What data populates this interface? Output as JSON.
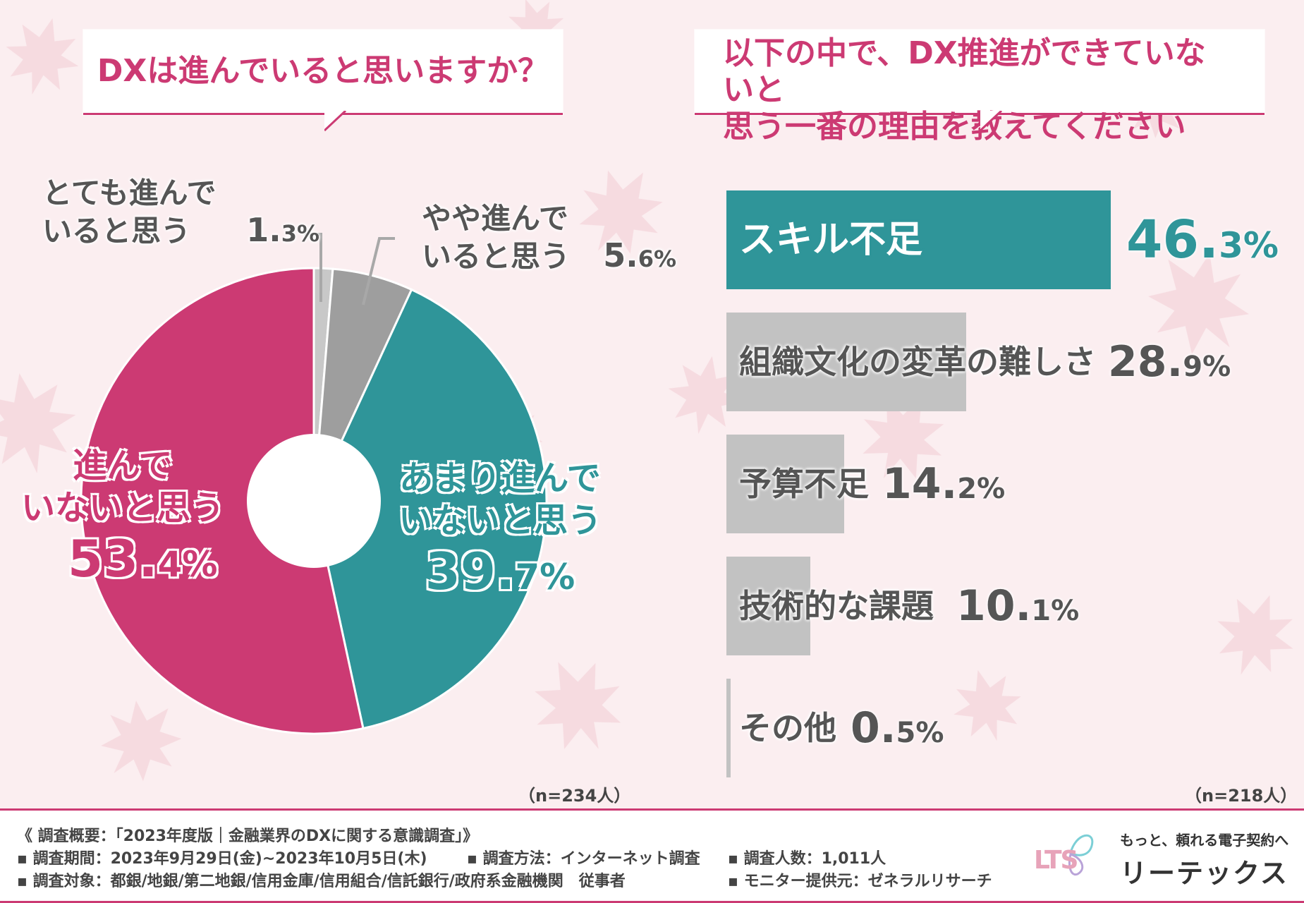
{
  "colors": {
    "accent": "#cc3a73",
    "teal": "#2f9599",
    "gray_bar": "#c2c2c2",
    "gray_dark": "#9e9e9e",
    "gray_light": "#c8c8c8",
    "bg": "#fbeef0"
  },
  "left": {
    "title": "DXは進んでいると思いますか？",
    "n_note": "（n=234人）",
    "labels": {
      "very": {
        "text_l1": "とても進んで",
        "text_l2": "いると思う",
        "pct_int": "1.",
        "pct_dec": "3%"
      },
      "somewhat": {
        "text_l1": "やや進んで",
        "text_l2": "いると思う",
        "pct_int": "5.",
        "pct_dec": "6%"
      },
      "not_much": {
        "text_l1": "あまり進んで",
        "text_l2": "いないと思う",
        "pct_int": "39.",
        "pct_dec": "7%"
      },
      "not": {
        "text_l1": "進んで",
        "text_l2": "いないと思う",
        "pct_int": "53.",
        "pct_dec": "4%"
      }
    }
  },
  "right": {
    "title": "以下の中で、DX推進ができていないと\n思う一番の理由を教えてください",
    "n_note": "（n=218人）",
    "bars": [
      {
        "label": "スキル不足",
        "int": "46.",
        "dec": "3%"
      },
      {
        "label": "組織文化の変革の難しさ",
        "int": "28.",
        "dec": "9%"
      },
      {
        "label": "予算不足",
        "int": "14.",
        "dec": "2%"
      },
      {
        "label": "技術的な課題",
        "int": "10.",
        "dec": "1%"
      },
      {
        "label": "その他",
        "int": "0.",
        "dec": "5%"
      }
    ]
  },
  "chart_data": [
    {
      "type": "pie",
      "title": "DXは進んでいると思いますか？",
      "categories": [
        "とても進んでいると思う",
        "やや進んでいると思う",
        "あまり進んでいないと思う",
        "進んでいないと思う"
      ],
      "values": [
        1.3,
        5.6,
        39.7,
        53.4
      ],
      "n": "n=234人"
    },
    {
      "type": "bar",
      "title": "以下の中で、DX推進ができていないと思う一番の理由を教えてください",
      "categories": [
        "スキル不足",
        "組織文化の変革の難しさ",
        "予算不足",
        "技術的な課題",
        "その他"
      ],
      "values": [
        46.3,
        28.9,
        14.2,
        10.1,
        0.5
      ],
      "n": "n=218人"
    }
  ],
  "footer": {
    "line1": "《 調査概要：「2023年度版｜金融業界のDXに関する意識調査」》",
    "period": "▪ 調査期間：2023年9月29日(金)~2023年10月5日(木)",
    "method": "▪ 調査方法：インターネット調査",
    "count": "▪ 調査人数：1,011人",
    "target": "▪ 調査対象：都銀/地銀/第二地銀/信用金庫/信用組合/信託銀行/政府系金融機関　従事者",
    "monitor": "▪ モニター提供元：ゼネラルリサーチ",
    "brand_tagline": "もっと、頼れる電子契約へ",
    "brand_name": "リーテックス",
    "brand_logo_text": "LTS"
  }
}
